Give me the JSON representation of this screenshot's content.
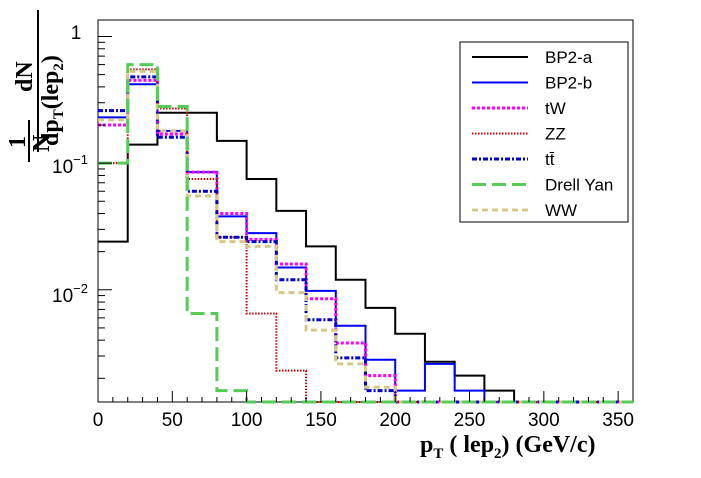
{
  "chart_data": {
    "type": "histogram-step",
    "title": "",
    "xlabel": "p_T ( lep_2) (GeV/c)",
    "xlabel_parts": {
      "p": "p",
      "T": "T",
      "open": "( lep",
      "two": "2",
      "close": ") (GeV/c)"
    },
    "ylabel": "(1/N) dN/dp_T(lep_2)",
    "ylabel_parts": {
      "one": "1",
      "N": "N",
      "dN": "dN",
      "dp": "dp",
      "T": "T",
      "lep": "(lep",
      "two": "2",
      "close": ")"
    },
    "xlim": [
      0,
      360
    ],
    "ylim": [
      0.0013,
      1.35
    ],
    "yscale": "log",
    "x_ticks": [
      "0",
      "50",
      "100",
      "150",
      "200",
      "250",
      "300",
      "350"
    ],
    "x_tick_values": [
      0,
      50,
      100,
      150,
      200,
      250,
      300,
      350
    ],
    "y_tick_labels": {
      "one": "1",
      "tenth_base": "10",
      "tenth_exp": "−1",
      "hundredth_base": "10",
      "hundredth_exp": "−2"
    },
    "bin_edges": [
      0,
      20,
      40,
      60,
      80,
      100,
      120,
      140,
      160,
      180,
      200,
      220,
      240,
      260,
      280,
      300,
      320,
      340,
      360
    ],
    "legend_position": "top-right",
    "series": [
      {
        "name": "BP2-a",
        "color": "#000000",
        "dash": "solid",
        "values": [
          0.024,
          0.14,
          0.25,
          0.25,
          0.15,
          0.075,
          0.042,
          0.022,
          0.012,
          0.0072,
          0.0045,
          0.0027,
          0.0021,
          0.0016,
          0,
          0,
          0,
          0
        ]
      },
      {
        "name": "BP2-b",
        "color": "#0000ff",
        "dash": "solid",
        "values": [
          0.23,
          0.42,
          0.18,
          0.085,
          0.038,
          0.028,
          0.015,
          0.0098,
          0.0052,
          0.0028,
          0.0016,
          0.0026,
          0.0016,
          0,
          0,
          0,
          0,
          0
        ]
      },
      {
        "name": "tW",
        "color": "#ff00ff",
        "dash": "dot",
        "values": [
          0.2,
          0.45,
          0.17,
          0.085,
          0.04,
          0.025,
          0.016,
          0.0085,
          0.0038,
          0.0021,
          0,
          0,
          0,
          0,
          0,
          0,
          0,
          0
        ]
      },
      {
        "name": "ZZ",
        "color": "#cc0000",
        "dash": "fine",
        "values": [
          0.1,
          0.55,
          0.27,
          0.075,
          0.026,
          0.0065,
          0.0023,
          0,
          0,
          0,
          0,
          0,
          0,
          0,
          0,
          0,
          0,
          0
        ]
      },
      {
        "name": "tt̄",
        "color": "#0000cc",
        "dash": "dashdot",
        "values": [
          0.26,
          0.48,
          0.16,
          0.06,
          0.026,
          0.024,
          0.012,
          0.0058,
          0.0029,
          0.0016,
          0,
          0,
          0,
          0,
          0,
          0,
          0,
          0
        ]
      },
      {
        "name": "Drell Yan",
        "color": "#55cc55",
        "dash": "long",
        "values": [
          0.1,
          0.6,
          0.28,
          0.0065,
          0.0016,
          0,
          0,
          0,
          0,
          0,
          0,
          0,
          0,
          0,
          0,
          0,
          0,
          0
        ]
      },
      {
        "name": "WW",
        "color": "#d8c888",
        "dash": "short",
        "values": [
          0.22,
          0.53,
          0.18,
          0.055,
          0.024,
          0.022,
          0.0095,
          0.0048,
          0.0026,
          0.0017,
          0,
          0,
          0,
          0,
          0,
          0,
          0,
          0
        ]
      }
    ]
  }
}
